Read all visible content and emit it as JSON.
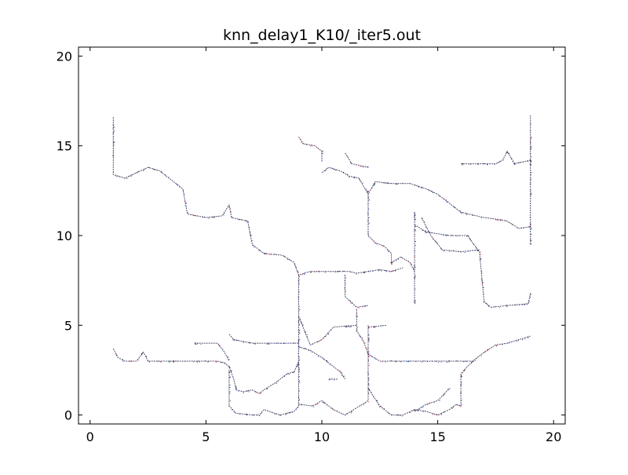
{
  "chart_data": {
    "type": "scatter",
    "title": "knn_delay1_K10/_iter5.out",
    "xlabel": "",
    "ylabel": "",
    "xlim": [
      -0.5,
      20.5
    ],
    "ylim": [
      -0.5,
      20.5
    ],
    "xticks": [
      0,
      5,
      10,
      15,
      20
    ],
    "yticks": [
      0,
      5,
      10,
      15,
      20
    ],
    "grid": false,
    "colors": {
      "trace": "#1a1a40",
      "accent1": "#c03050",
      "accent2": "#3050c0"
    },
    "paths": [
      [
        [
          1,
          16.6
        ],
        [
          1,
          13.4
        ],
        [
          1.5,
          13.2
        ],
        [
          2,
          13.5
        ],
        [
          2.5,
          13.8
        ],
        [
          3,
          13.6
        ],
        [
          3.5,
          13.1
        ],
        [
          4,
          12.6
        ],
        [
          4.2,
          11.2
        ],
        [
          5,
          11
        ],
        [
          5.7,
          11.1
        ],
        [
          6,
          11.7
        ],
        [
          6.1,
          11
        ],
        [
          6.8,
          10.8
        ],
        [
          7,
          9.5
        ],
        [
          7.5,
          9
        ],
        [
          8.3,
          8.9
        ],
        [
          8.8,
          8.5
        ],
        [
          9,
          7.8
        ],
        [
          9.5,
          8
        ],
        [
          10.5,
          8
        ],
        [
          11.2,
          8
        ],
        [
          11.5,
          7.9
        ],
        [
          12,
          8
        ],
        [
          12.5,
          8.1
        ],
        [
          13,
          8
        ],
        [
          13.5,
          8.2
        ]
      ],
      [
        [
          9,
          15.5
        ],
        [
          9.2,
          15.1
        ],
        [
          9.7,
          15
        ],
        [
          10,
          14.7
        ],
        [
          10,
          14.1
        ]
      ],
      [
        [
          10,
          13.5
        ],
        [
          10.3,
          13.8
        ],
        [
          10.8,
          13.6
        ],
        [
          11.2,
          13.3
        ],
        [
          11.6,
          13.2
        ],
        [
          12,
          12.3
        ],
        [
          12.3,
          13
        ],
        [
          13,
          12.9
        ],
        [
          13.8,
          12.9
        ],
        [
          14.5,
          12.6
        ],
        [
          15,
          12.3
        ],
        [
          15.5,
          11.8
        ],
        [
          16,
          11.3
        ],
        [
          17,
          11
        ],
        [
          17.6,
          10.9
        ],
        [
          18,
          10.8
        ],
        [
          18.5,
          10.4
        ],
        [
          19,
          10.5
        ]
      ],
      [
        [
          11,
          14.6
        ],
        [
          11.3,
          14
        ],
        [
          12,
          13.8
        ]
      ],
      [
        [
          12,
          12.5
        ],
        [
          12,
          10
        ],
        [
          12.3,
          9.6
        ],
        [
          12.7,
          9.4
        ],
        [
          13,
          9
        ],
        [
          13,
          8.4
        ]
      ],
      [
        [
          13,
          8.5
        ],
        [
          13.4,
          8.8
        ],
        [
          13.8,
          8.5
        ],
        [
          14,
          8
        ]
      ],
      [
        [
          14,
          11.3
        ],
        [
          14,
          6.2
        ]
      ],
      [
        [
          14,
          10.6
        ],
        [
          14.5,
          10.2
        ],
        [
          15,
          10.1
        ],
        [
          15.5,
          10
        ],
        [
          16.3,
          10
        ],
        [
          16.5,
          9.6
        ],
        [
          16.8,
          9.1
        ],
        [
          17,
          6.3
        ],
        [
          17.3,
          6
        ],
        [
          18,
          6.1
        ],
        [
          18.9,
          6.2
        ],
        [
          19,
          6.8
        ]
      ],
      [
        [
          14.3,
          11
        ],
        [
          14.7,
          10
        ],
        [
          15.2,
          9.2
        ],
        [
          16,
          9.1
        ],
        [
          16.8,
          9.2
        ]
      ],
      [
        [
          16,
          14
        ],
        [
          16.4,
          14
        ],
        [
          17.5,
          14
        ],
        [
          17.8,
          14.2
        ],
        [
          18,
          14.7
        ],
        [
          18.3,
          14
        ],
        [
          19,
          14.2
        ],
        [
          19,
          16.7
        ]
      ],
      [
        [
          19,
          14.2
        ],
        [
          19,
          9.5
        ]
      ],
      [
        [
          9,
          7.8
        ],
        [
          9,
          0.5
        ],
        [
          8.8,
          0.2
        ],
        [
          8.2,
          0
        ],
        [
          7.5,
          0.3
        ],
        [
          7.3,
          0
        ]
      ],
      [
        [
          9,
          5.5
        ],
        [
          9.5,
          3.9
        ],
        [
          10,
          4.2
        ],
        [
          10.5,
          4.9
        ],
        [
          11.5,
          5
        ]
      ],
      [
        [
          11,
          7.8
        ],
        [
          11,
          6.6
        ],
        [
          11.5,
          6
        ],
        [
          12,
          6.1
        ]
      ],
      [
        [
          11.5,
          5.9
        ],
        [
          11.5,
          4.7
        ],
        [
          11.8,
          4.1
        ],
        [
          12,
          3.4
        ],
        [
          12.5,
          3
        ],
        [
          13.5,
          3
        ],
        [
          15,
          3
        ],
        [
          16,
          3
        ],
        [
          16.5,
          3
        ],
        [
          17,
          3.5
        ],
        [
          17.5,
          3.9
        ],
        [
          18,
          4
        ],
        [
          19,
          4.4
        ]
      ],
      [
        [
          12,
          5
        ],
        [
          12,
          0.8
        ],
        [
          11.5,
          0.4
        ],
        [
          11,
          0
        ],
        [
          10.5,
          0.3
        ],
        [
          10,
          0.8
        ],
        [
          9.6,
          0.5
        ],
        [
          9,
          0.6
        ]
      ],
      [
        [
          12,
          4.9
        ],
        [
          12.8,
          5
        ]
      ],
      [
        [
          1,
          3.7
        ],
        [
          1.2,
          3.2
        ],
        [
          1.5,
          3
        ],
        [
          2,
          3
        ],
        [
          2.3,
          3.5
        ],
        [
          2.5,
          3
        ],
        [
          3.5,
          3
        ],
        [
          4.5,
          3
        ],
        [
          5,
          3
        ],
        [
          5.5,
          3
        ],
        [
          5.8,
          2.9
        ],
        [
          6,
          2.7
        ],
        [
          6.2,
          2
        ],
        [
          6.3,
          1.4
        ],
        [
          6.6,
          1.3
        ],
        [
          7,
          1.4
        ],
        [
          7.3,
          1.2
        ],
        [
          7.5,
          1.4
        ],
        [
          8,
          1.8
        ],
        [
          8.5,
          2.3
        ],
        [
          8.8,
          2.4
        ],
        [
          9,
          3
        ]
      ],
      [
        [
          6,
          4.5
        ],
        [
          6.2,
          4.2
        ],
        [
          7,
          4
        ],
        [
          8,
          4
        ],
        [
          9,
          4
        ]
      ],
      [
        [
          4.5,
          4
        ],
        [
          5.5,
          4
        ],
        [
          5.8,
          3.5
        ],
        [
          6,
          3
        ]
      ],
      [
        [
          9,
          3.8
        ],
        [
          9.5,
          3.6
        ],
        [
          10,
          3.2
        ],
        [
          10.5,
          2.7
        ],
        [
          10.8,
          2.4
        ],
        [
          11,
          2
        ]
      ],
      [
        [
          6,
          2.5
        ],
        [
          6,
          0.5
        ],
        [
          6.3,
          0.1
        ],
        [
          7,
          0
        ],
        [
          7.3,
          0
        ]
      ],
      [
        [
          12,
          1.5
        ],
        [
          12.5,
          0.5
        ],
        [
          13,
          0
        ],
        [
          13.5,
          0
        ],
        [
          14,
          0.3
        ],
        [
          14.5,
          0.2
        ],
        [
          15,
          0
        ],
        [
          15.5,
          0.3
        ],
        [
          15.8,
          0.6
        ],
        [
          16,
          0.5
        ],
        [
          16,
          2.3
        ],
        [
          16.5,
          3
        ]
      ],
      [
        [
          14,
          0.2
        ],
        [
          14.5,
          0.6
        ],
        [
          15,
          0.8
        ],
        [
          15.3,
          1.2
        ],
        [
          15.5,
          1.5
        ]
      ],
      [
        [
          10.3,
          2
        ],
        [
          10.7,
          2
        ]
      ]
    ]
  }
}
